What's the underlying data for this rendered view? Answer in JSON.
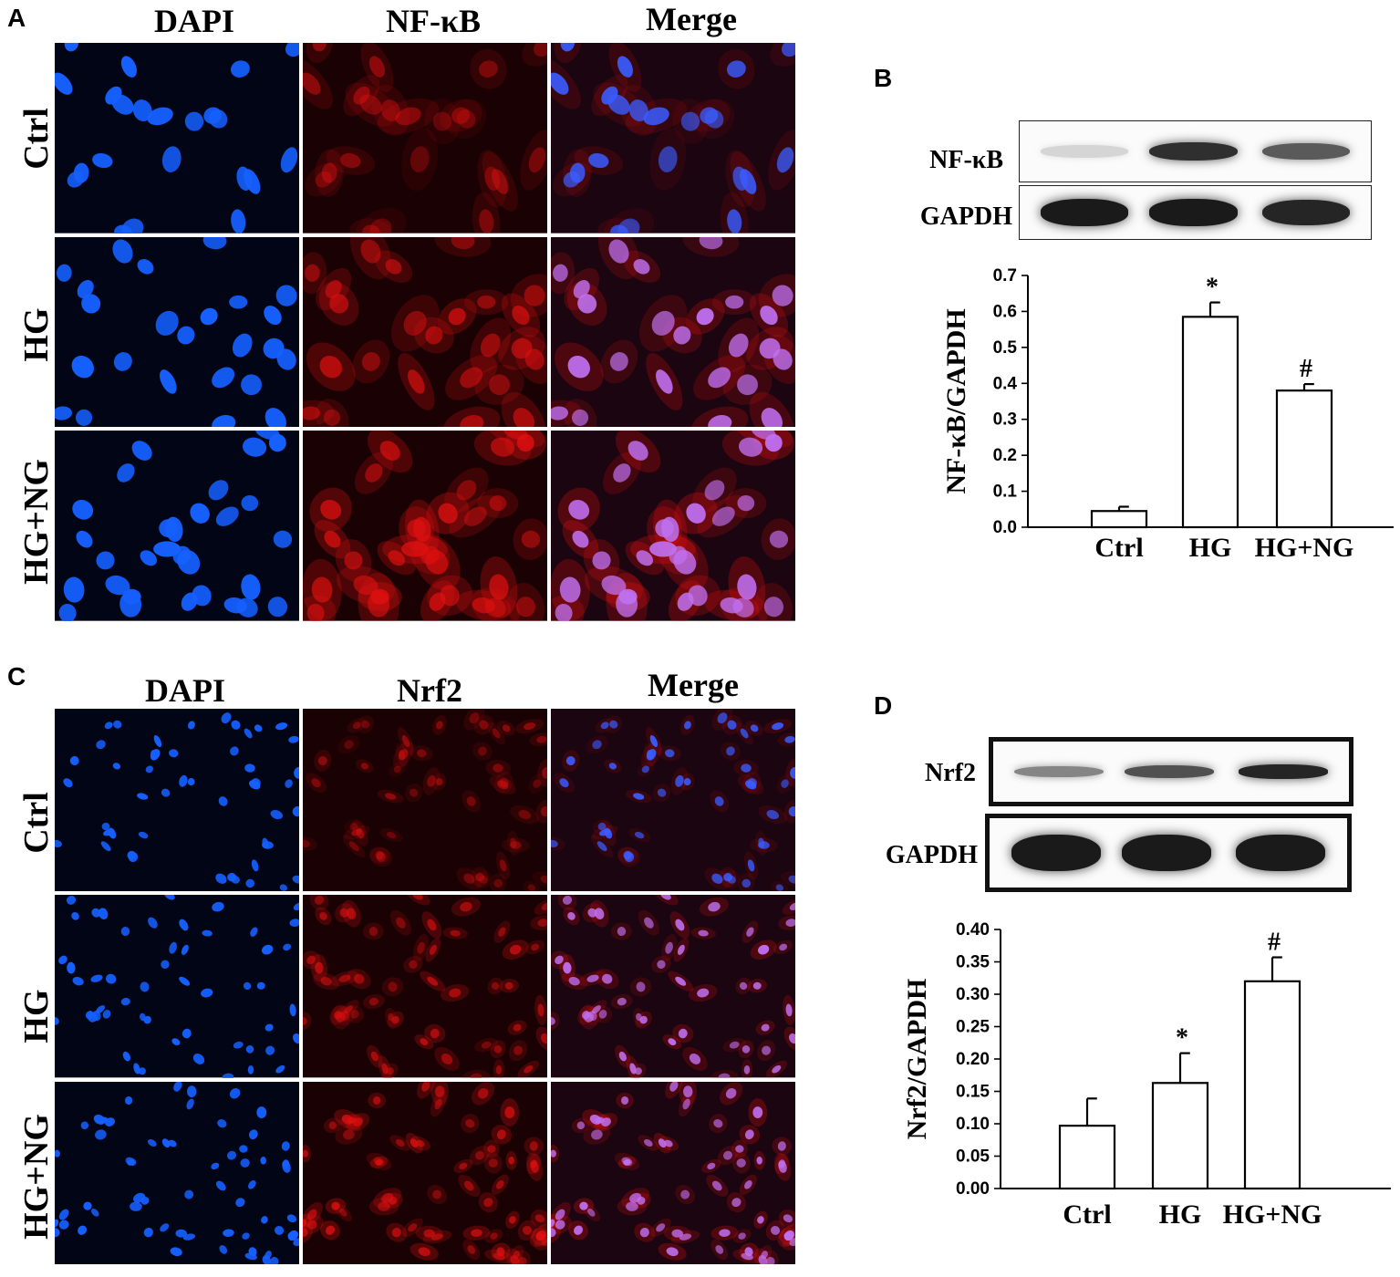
{
  "panels": {
    "A": {
      "letter": "A",
      "columns": [
        "DAPI",
        "NF-κB",
        "Merge"
      ],
      "rows": [
        "Ctrl",
        "HG",
        "HG+NG"
      ]
    },
    "B": {
      "letter": "B",
      "blot_labels": [
        "NF-κB",
        "GAPDH"
      ]
    },
    "C": {
      "letter": "C",
      "columns": [
        "DAPI",
        "Nrf2",
        "Merge"
      ],
      "rows": [
        "Ctrl",
        "HG",
        "HG+NG"
      ]
    },
    "D": {
      "letter": "D",
      "blot_labels": [
        "Nrf2",
        "GAPDH"
      ]
    }
  },
  "colors": {
    "dapi": "#1560ff",
    "stain_red": "#e01010",
    "merge_nucleus": "#c070f0",
    "bar_fill": "#ffffff",
    "axis": "#000000"
  },
  "blot_intensity": {
    "B": {
      "NF-κB": [
        0.08,
        0.85,
        0.65
      ],
      "GAPDH": [
        0.95,
        0.95,
        0.9
      ]
    },
    "D": {
      "Nrf2": [
        0.45,
        0.7,
        0.9
      ],
      "GAPDH": [
        0.95,
        0.95,
        0.95
      ]
    }
  },
  "chart_data": [
    {
      "type": "bar",
      "panel": "B",
      "categories": [
        "Ctrl",
        "HG",
        "HG+NG"
      ],
      "values": [
        0.045,
        0.585,
        0.38
      ],
      "errors": [
        0.012,
        0.04,
        0.018
      ],
      "annotations": [
        "",
        "*",
        "#"
      ],
      "ylabel": "NF-κB/GAPDH",
      "ylim": [
        0,
        0.7
      ],
      "yticks": [
        "0.0",
        "0.1",
        "0.2",
        "0.3",
        "0.4",
        "0.5",
        "0.6",
        "0.7"
      ],
      "ytick_values": [
        0,
        0.1,
        0.2,
        0.3,
        0.4,
        0.5,
        0.6,
        0.7
      ],
      "grid": false
    },
    {
      "type": "bar",
      "panel": "D",
      "categories": [
        "Ctrl",
        "HG",
        "HG+NG"
      ],
      "values": [
        0.097,
        0.163,
        0.32
      ],
      "errors": [
        0.042,
        0.046,
        0.037
      ],
      "annotations": [
        "",
        "*",
        "#"
      ],
      "ylabel": "Nrf2/GAPDH",
      "ylim": [
        0,
        0.4
      ],
      "yticks": [
        "0.00",
        "0.05",
        "0.10",
        "0.15",
        "0.20",
        "0.25",
        "0.30",
        "0.35",
        "0.40"
      ],
      "ytick_values": [
        0,
        0.05,
        0.1,
        0.15,
        0.2,
        0.25,
        0.3,
        0.35,
        0.4
      ],
      "grid": false
    }
  ]
}
